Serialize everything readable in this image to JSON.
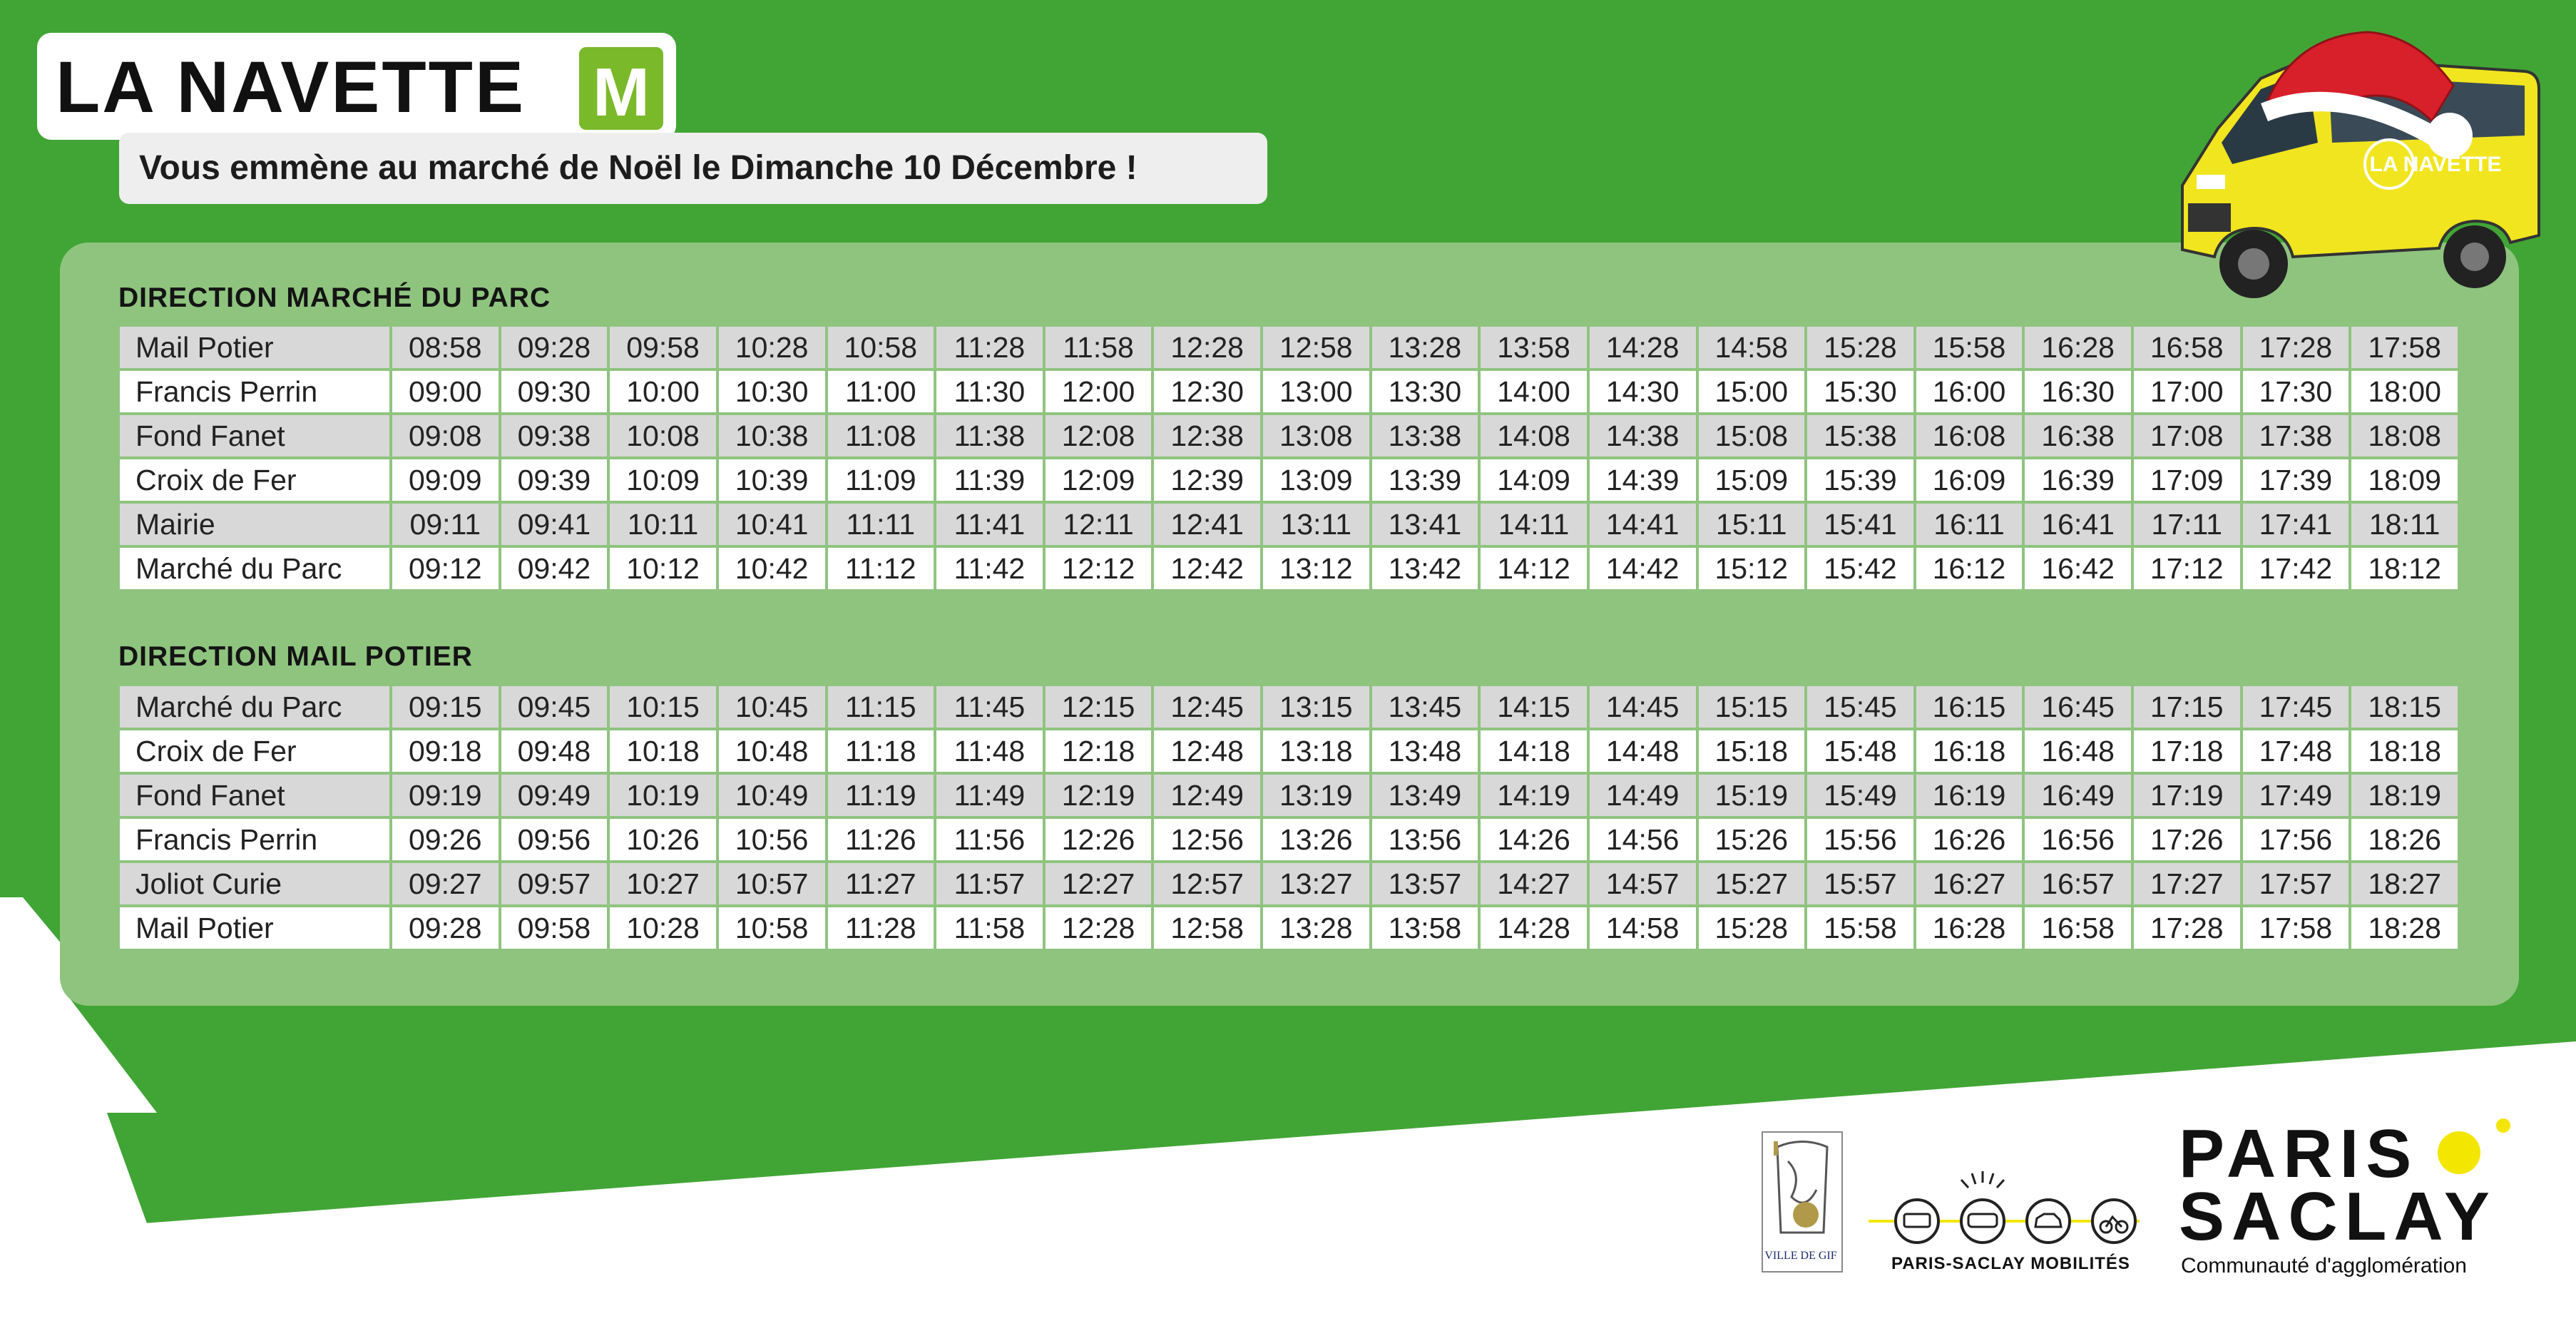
{
  "header": {
    "title": "LA NAVETTE",
    "line_badge": "M",
    "subtitle": "Vous emmène au marché de Noël le Dimanche 10 Décembre !"
  },
  "colors": {
    "background_green": "#41a535",
    "panel_green": "#8fc47f",
    "badge_green": "#7ab929",
    "bus_yellow": "#f1e51f",
    "hat_red": "#d8202a",
    "accent_yellow": "#f3e600"
  },
  "bus_illustration": {
    "livery_text": "LA NAVETTE",
    "icon": "decorated-bus-with-santa-hat-icon"
  },
  "timetables": [
    {
      "direction": "DIRECTION MARCHÉ DU PARC",
      "rows": [
        {
          "stop": "Mail Potier",
          "times": [
            "08:58",
            "09:28",
            "09:58",
            "10:28",
            "10:58",
            "11:28",
            "11:58",
            "12:28",
            "12:58",
            "13:28",
            "13:58",
            "14:28",
            "14:58",
            "15:28",
            "15:58",
            "16:28",
            "16:58",
            "17:28",
            "17:58"
          ]
        },
        {
          "stop": "Francis Perrin",
          "times": [
            "09:00",
            "09:30",
            "10:00",
            "10:30",
            "11:00",
            "11:30",
            "12:00",
            "12:30",
            "13:00",
            "13:30",
            "14:00",
            "14:30",
            "15:00",
            "15:30",
            "16:00",
            "16:30",
            "17:00",
            "17:30",
            "18:00"
          ]
        },
        {
          "stop": "Fond Fanet",
          "times": [
            "09:08",
            "09:38",
            "10:08",
            "10:38",
            "11:08",
            "11:38",
            "12:08",
            "12:38",
            "13:08",
            "13:38",
            "14:08",
            "14:38",
            "15:08",
            "15:38",
            "16:08",
            "16:38",
            "17:08",
            "17:38",
            "18:08"
          ]
        },
        {
          "stop": "Croix de Fer",
          "times": [
            "09:09",
            "09:39",
            "10:09",
            "10:39",
            "11:09",
            "11:39",
            "12:09",
            "12:39",
            "13:09",
            "13:39",
            "14:09",
            "14:39",
            "15:09",
            "15:39",
            "16:09",
            "16:39",
            "17:09",
            "17:39",
            "18:09"
          ]
        },
        {
          "stop": "Mairie",
          "times": [
            "09:11",
            "09:41",
            "10:11",
            "10:41",
            "11:11",
            "11:41",
            "12:11",
            "12:41",
            "13:11",
            "13:41",
            "14:11",
            "14:41",
            "15:11",
            "15:41",
            "16:11",
            "16:41",
            "17:11",
            "17:41",
            "18:11"
          ]
        },
        {
          "stop": "Marché du Parc",
          "times": [
            "09:12",
            "09:42",
            "10:12",
            "10:42",
            "11:12",
            "11:42",
            "12:12",
            "12:42",
            "13:12",
            "13:42",
            "14:12",
            "14:42",
            "15:12",
            "15:42",
            "16:12",
            "16:42",
            "17:12",
            "17:42",
            "18:12"
          ]
        }
      ]
    },
    {
      "direction": "DIRECTION MAIL POTIER",
      "rows": [
        {
          "stop": "Marché du Parc",
          "times": [
            "09:15",
            "09:45",
            "10:15",
            "10:45",
            "11:15",
            "11:45",
            "12:15",
            "12:45",
            "13:15",
            "13:45",
            "14:15",
            "14:45",
            "15:15",
            "15:45",
            "16:15",
            "16:45",
            "17:15",
            "17:45",
            "18:15"
          ]
        },
        {
          "stop": "Croix de Fer",
          "times": [
            "09:18",
            "09:48",
            "10:18",
            "10:48",
            "11:18",
            "11:48",
            "12:18",
            "12:48",
            "13:18",
            "13:48",
            "14:18",
            "14:48",
            "15:18",
            "15:48",
            "16:18",
            "16:48",
            "17:18",
            "17:48",
            "18:18"
          ]
        },
        {
          "stop": "Fond Fanet",
          "times": [
            "09:19",
            "09:49",
            "10:19",
            "10:49",
            "11:19",
            "11:49",
            "12:19",
            "12:49",
            "13:19",
            "13:49",
            "14:19",
            "14:49",
            "15:19",
            "15:49",
            "16:19",
            "16:49",
            "17:19",
            "17:49",
            "18:19"
          ]
        },
        {
          "stop": "Francis Perrin",
          "times": [
            "09:26",
            "09:56",
            "10:26",
            "10:56",
            "11:26",
            "11:56",
            "12:26",
            "12:56",
            "13:26",
            "13:56",
            "14:26",
            "14:56",
            "15:26",
            "15:56",
            "16:26",
            "16:56",
            "17:26",
            "17:56",
            "18:26"
          ]
        },
        {
          "stop": "Joliot Curie",
          "times": [
            "09:27",
            "09:57",
            "10:27",
            "10:57",
            "11:27",
            "11:57",
            "12:27",
            "12:57",
            "13:27",
            "13:57",
            "14:27",
            "14:57",
            "15:27",
            "15:57",
            "16:27",
            "16:57",
            "17:27",
            "17:57",
            "18:27"
          ]
        },
        {
          "stop": "Mail Potier",
          "times": [
            "09:28",
            "09:58",
            "10:28",
            "10:58",
            "11:28",
            "11:58",
            "12:28",
            "12:58",
            "13:28",
            "13:58",
            "14:28",
            "14:58",
            "15:28",
            "15:58",
            "16:28",
            "16:58",
            "17:28",
            "17:58",
            "18:28"
          ]
        }
      ]
    }
  ],
  "footer": {
    "gif_logo_label": "VILLE DE GIF",
    "mobilites_label": "PARIS-SACLAY MOBILITÉS",
    "mobilites_icons": [
      "bus-icon",
      "minibus-icon",
      "car-icon",
      "bicycle-icon"
    ],
    "paris_saclay_line1": "PARIS",
    "paris_saclay_line2": "SACLAY",
    "paris_saclay_sub": "Communauté d'agglomération"
  }
}
